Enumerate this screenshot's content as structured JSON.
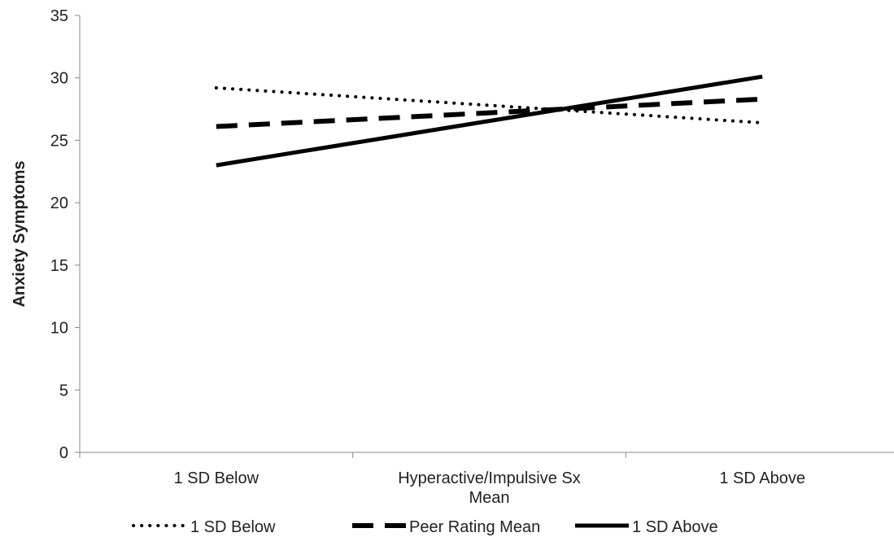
{
  "chart_data": {
    "type": "line",
    "title": "",
    "xlabel": "",
    "ylabel": "Anxiety Symptoms",
    "categories": [
      "1 SD Below",
      "Hyperactive/Impulsive Sx\nMean",
      "1 SD Above"
    ],
    "ylim": [
      0,
      35
    ],
    "yticks": [
      0,
      5,
      10,
      15,
      20,
      25,
      30,
      35
    ],
    "grid": false,
    "legend_position": "bottom",
    "series": [
      {
        "name": "1 SD Below",
        "style": "dotted",
        "color": "#000000",
        "x": [
          0,
          2
        ],
        "values": [
          29.2,
          26.4
        ]
      },
      {
        "name": "Peer Rating Mean",
        "style": "dashed",
        "color": "#000000",
        "x": [
          0,
          2
        ],
        "values": [
          26.1,
          28.3
        ]
      },
      {
        "name": "1 SD Above",
        "style": "solid",
        "color": "#000000",
        "x": [
          0,
          2
        ],
        "values": [
          23.0,
          30.1
        ]
      }
    ]
  }
}
